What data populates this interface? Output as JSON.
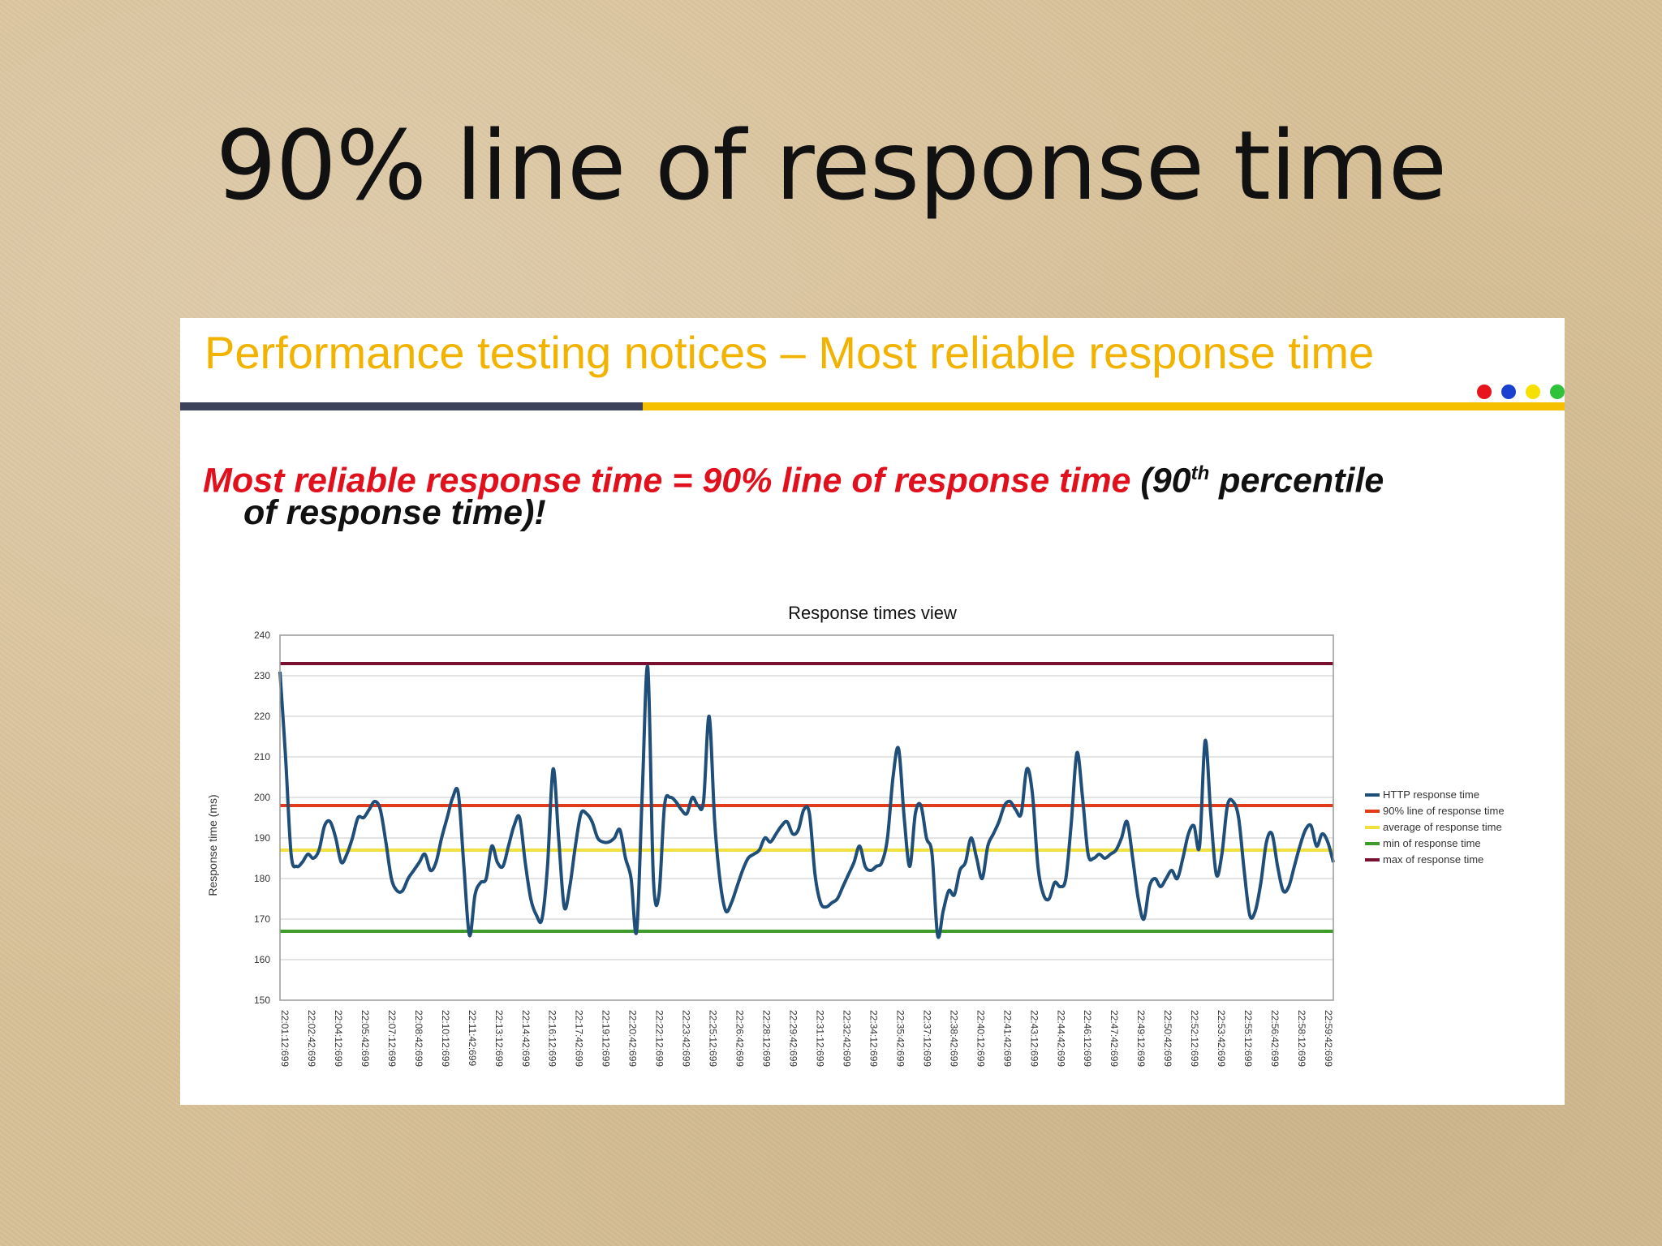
{
  "slide": {
    "title": "90% line of response time"
  },
  "panel": {
    "header": "Performance testing notices – Most reliable response time",
    "statement": {
      "red": "Most reliable response time = 90% line of response time",
      "black_pre": "(90",
      "sup": "th",
      "black_post": " percentile",
      "line2": "of response time)!"
    },
    "dots": [
      "#e8141c",
      "#1a40d0",
      "#f5e000",
      "#2fc23a"
    ]
  },
  "chart_data": {
    "type": "line",
    "title": "Response times view",
    "ylabel": "Response time (ms)",
    "xlabel": "",
    "ylim": [
      150,
      240
    ],
    "yticks": [
      150,
      160,
      170,
      180,
      190,
      200,
      210,
      220,
      230,
      240
    ],
    "grid": true,
    "legend_position": "right",
    "x_tick_labels": [
      "22:01:12:699",
      "22:02:42:699",
      "22:04:12:699",
      "22:05:42:699",
      "22:07:12:699",
      "22:08:42:699",
      "22:10:12:699",
      "22:11:42:699",
      "22:13:12:699",
      "22:14:42:699",
      "22:16:12:699",
      "22:17:42:699",
      "22:19:12:699",
      "22:20:42:699",
      "22:22:12:699",
      "22:23:42:699",
      "22:25:12:699",
      "22:26:42:699",
      "22:28:12:699",
      "22:29:42:699",
      "22:31:12:699",
      "22:32:42:699",
      "22:34:12:699",
      "22:35:42:699",
      "22:37:12:699",
      "22:38:42:699",
      "22:40:12:699",
      "22:41:42:699",
      "22:43:12:699",
      "22:44:42:699",
      "22:46:12:699",
      "22:47:42:699",
      "22:49:12:699",
      "22:50:42:699",
      "22:52:12:699",
      "22:53:42:699",
      "22:55:12:699",
      "22:56:42:699",
      "22:58:12:699",
      "22:59:42:699"
    ],
    "series": [
      {
        "name": "HTTP response time",
        "color": "#1f4e79",
        "values": [
          231,
          210,
          186,
          183,
          184,
          186,
          185,
          187,
          193,
          194,
          190,
          184,
          186,
          190,
          195,
          195,
          197,
          199,
          197,
          189,
          180,
          177,
          177,
          180,
          182,
          184,
          186,
          182,
          184,
          190,
          195,
          200,
          201,
          183,
          166,
          176,
          179,
          180,
          188,
          184,
          183,
          188,
          193,
          195,
          184,
          175,
          171,
          170,
          183,
          207,
          190,
          173,
          178,
          188,
          196,
          196,
          194,
          190,
          189,
          189,
          190,
          192,
          185,
          180,
          167,
          201,
          232,
          180,
          176,
          198,
          200,
          199,
          197,
          196,
          200,
          198,
          199,
          220,
          194,
          179,
          172,
          174,
          178,
          182,
          185,
          186,
          187,
          190,
          189,
          191,
          193,
          194,
          191,
          192,
          197,
          196,
          181,
          174,
          173,
          174,
          175,
          178,
          181,
          184,
          188,
          183,
          182,
          183,
          184,
          190,
          205,
          212,
          195,
          183,
          196,
          198,
          190,
          186,
          166,
          172,
          177,
          176,
          182,
          184,
          190,
          185,
          180,
          188,
          191,
          194,
          198,
          199,
          197,
          196,
          207,
          201,
          183,
          176,
          175,
          179,
          178,
          180,
          194,
          211,
          200,
          186,
          185,
          186,
          185,
          186,
          187,
          190,
          194,
          185,
          175,
          170,
          178,
          180,
          178,
          180,
          182,
          180,
          185,
          191,
          193,
          188,
          214,
          196,
          181,
          186,
          198,
          199,
          195,
          182,
          171,
          172,
          179,
          189,
          191,
          183,
          177,
          178,
          183,
          188,
          192,
          193,
          188,
          191,
          189,
          184
        ]
      },
      {
        "name": "90% line of response time",
        "color": "#e03c1c",
        "constant": 198
      },
      {
        "name": "average of response time",
        "color": "#f0e040",
        "constant": 187
      },
      {
        "name": "min of response time",
        "color": "#3f9c2b",
        "constant": 167
      },
      {
        "name": "max of response time",
        "color": "#7a1030",
        "constant": 233
      }
    ]
  }
}
